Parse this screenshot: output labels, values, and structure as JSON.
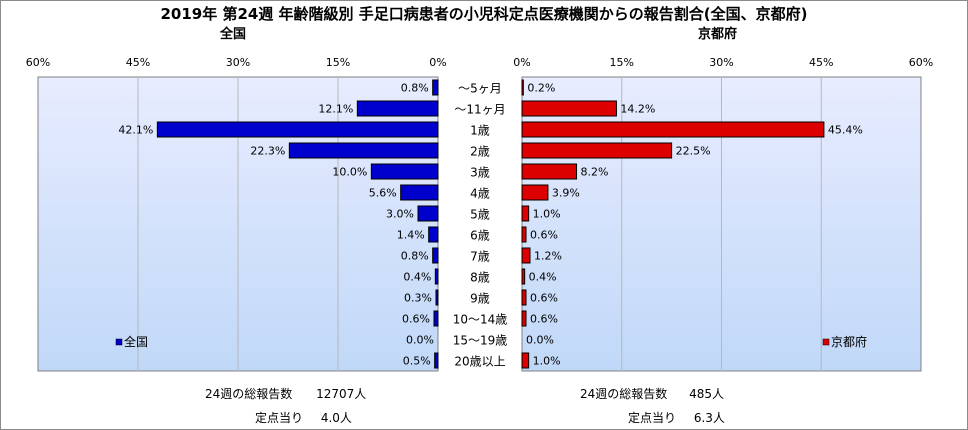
{
  "title": "2019年 第24週 年齢階級別 手足口病患者の小児科定点医療機関からの報告割合(全国、京都府)",
  "chart_data": [
    {
      "type": "bar",
      "orientation": "horizontal",
      "direction": "reversed",
      "title": "全国",
      "categories": [
        "～5ヶ月",
        "～11ヶ月",
        "1歳",
        "2歳",
        "3歳",
        "4歳",
        "5歳",
        "6歳",
        "7歳",
        "8歳",
        "9歳",
        "10～14歳",
        "15～19歳",
        "20歳以上"
      ],
      "series": [
        {
          "name": "全国",
          "values": [
            0.8,
            12.1,
            42.1,
            22.3,
            10.0,
            5.6,
            3.0,
            1.4,
            0.8,
            0.4,
            0.3,
            0.6,
            0.0,
            0.5
          ]
        }
      ],
      "value_labels": [
        "0.8%",
        "12.1%",
        "42.1%",
        "22.3%",
        "10.0%",
        "5.6%",
        "3.0%",
        "1.4%",
        "0.8%",
        "0.4%",
        "0.3%",
        "0.6%",
        "0.0%",
        "0.5%"
      ],
      "xlim": [
        0,
        60
      ],
      "ticks": [
        "60%",
        "45%",
        "30%",
        "15%",
        "0%"
      ],
      "color": "#0000cc",
      "legend_position": "bottom-left",
      "grid": true
    },
    {
      "type": "bar",
      "orientation": "horizontal",
      "title": "京都府",
      "categories": [
        "～5ヶ月",
        "～11ヶ月",
        "1歳",
        "2歳",
        "3歳",
        "4歳",
        "5歳",
        "6歳",
        "7歳",
        "8歳",
        "9歳",
        "10～14歳",
        "15～19歳",
        "20歳以上"
      ],
      "series": [
        {
          "name": "京都府",
          "values": [
            0.2,
            14.2,
            45.4,
            22.5,
            8.2,
            3.9,
            1.0,
            0.6,
            1.2,
            0.4,
            0.6,
            0.6,
            0.0,
            1.0
          ]
        }
      ],
      "value_labels": [
        "0.2%",
        "14.2%",
        "45.4%",
        "22.5%",
        "8.2%",
        "3.9%",
        "1.0%",
        "0.6%",
        "1.2%",
        "0.4%",
        "0.6%",
        "0.6%",
        "0.0%",
        "1.0%"
      ],
      "xlim": [
        0,
        60
      ],
      "ticks": [
        "0%",
        "15%",
        "30%",
        "45%",
        "60%"
      ],
      "color": "#dd0000",
      "legend_position": "bottom-right",
      "grid": true
    }
  ],
  "stats": {
    "national": {
      "total_label": "24週の総報告数",
      "total_value": "12707人",
      "perpoint_label": "定点当り",
      "perpoint_value": "4.0人"
    },
    "kyoto": {
      "total_label": "24週の総報告数",
      "total_value": "485人",
      "perpoint_label": "定点当り",
      "perpoint_value": "6.3人"
    }
  },
  "colors": {
    "plot_bg_top": "#e8ecff",
    "plot_bg_bottom": "#c0d8f8",
    "gridline": "#b8b8b8"
  }
}
